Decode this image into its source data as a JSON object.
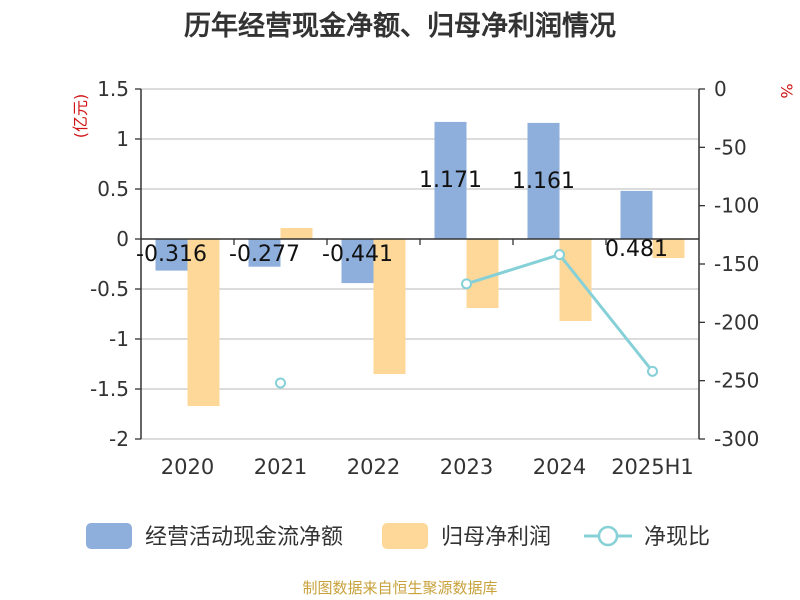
{
  "title": "历年经营现金净额、归母净利润情况",
  "source": "制图数据来自恒生聚源数据库",
  "chart_data": {
    "type": "bar",
    "title": "历年经营现金净额、归母净利润情况",
    "categories": [
      "2020",
      "2021",
      "2022",
      "2023",
      "2024",
      "2025H1"
    ],
    "left_axis": {
      "unit": "(亿元)",
      "ylim": [
        -2,
        1.5
      ],
      "ticks": [
        1.5,
        1,
        0.5,
        0,
        -0.5,
        -1,
        -1.5,
        -2
      ]
    },
    "right_axis": {
      "unit": "%",
      "ylim": [
        -300,
        0
      ],
      "ticks": [
        0,
        -50,
        -100,
        -150,
        -200,
        -250,
        -300
      ]
    },
    "series": [
      {
        "name": "经营活动现金流净额",
        "type": "bar",
        "axis": "left",
        "color": "#8eaedb",
        "values": [
          -0.316,
          -0.277,
          -0.441,
          1.171,
          1.161,
          0.481
        ],
        "labels": [
          "-0.316",
          "-0.277",
          "-0.441",
          "1.171",
          "1.161",
          "0.481"
        ]
      },
      {
        "name": "归母净利润",
        "type": "bar",
        "axis": "left",
        "color": "#fed898",
        "values": [
          -1.67,
          0.11,
          -1.35,
          -0.69,
          -0.82,
          -0.19
        ]
      },
      {
        "name": "净现比",
        "type": "line",
        "axis": "right",
        "color": "#86d0d8",
        "values": [
          null,
          -252,
          null,
          -167,
          -142,
          -242
        ]
      }
    ],
    "grid": true,
    "legend": "bottom"
  }
}
